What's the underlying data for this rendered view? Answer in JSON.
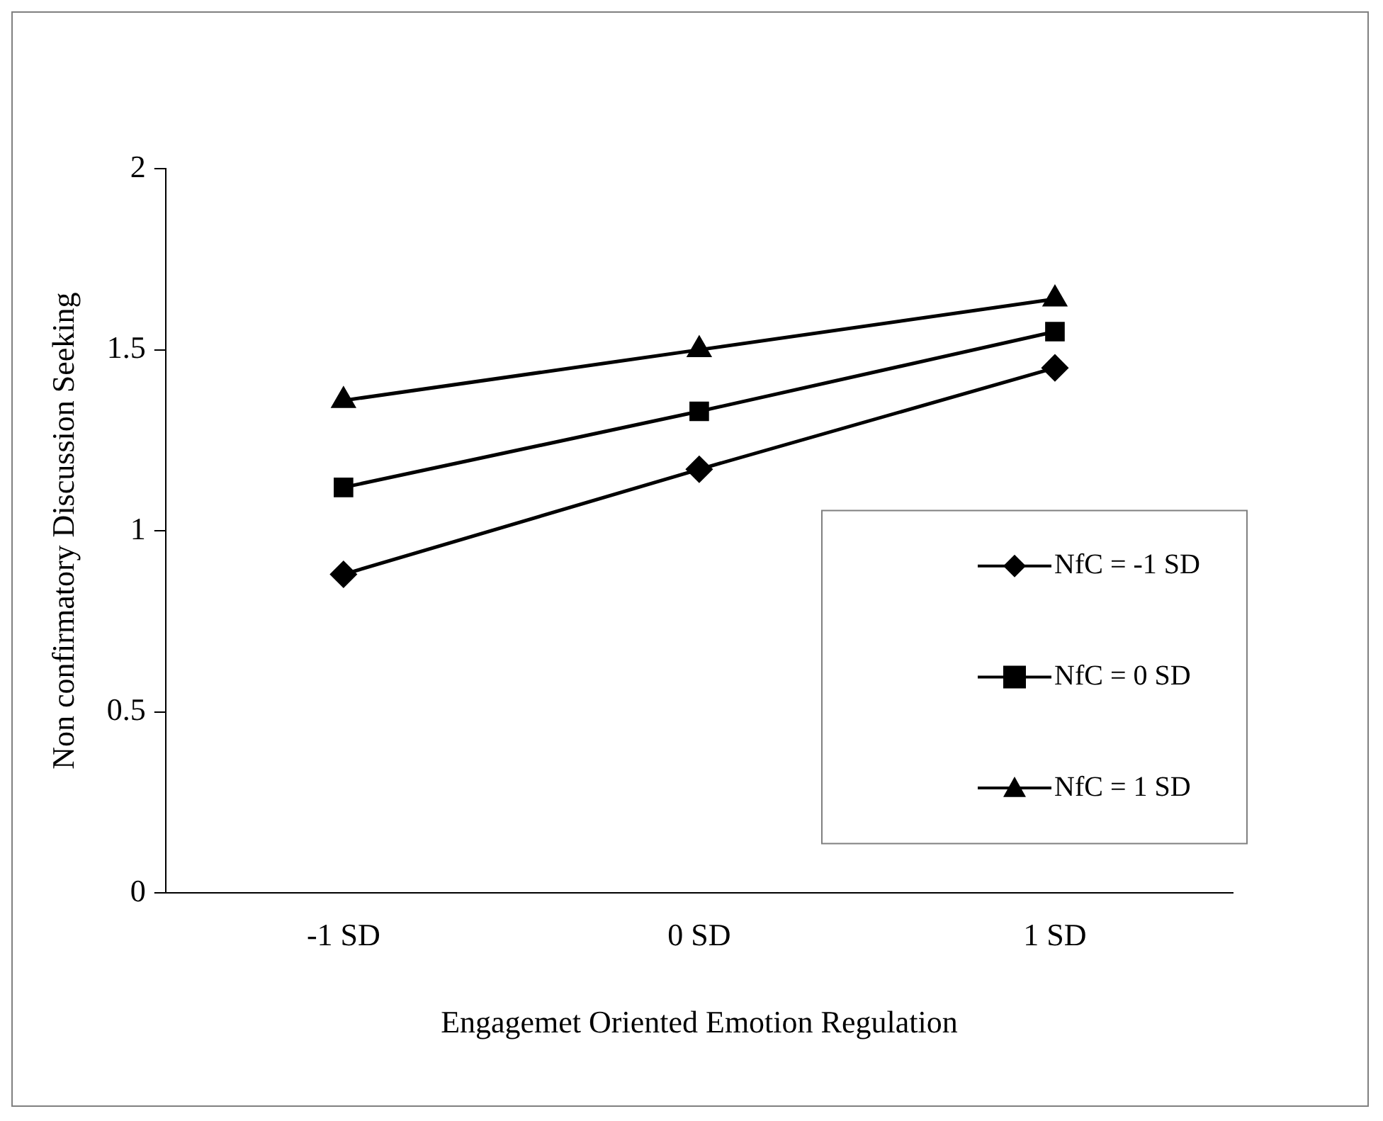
{
  "chart_data": {
    "type": "line",
    "xlabel": "Engagemet Oriented Emotion Regulation",
    "ylabel": "Non confirmatory Discussion Seeking",
    "categories": [
      "-1 SD",
      "0 SD",
      "1 SD"
    ],
    "series": [
      {
        "name": "NfC = -1 SD",
        "color": "#000000",
        "marker": "diamond",
        "values": [
          0.88,
          1.17,
          1.45
        ]
      },
      {
        "name": "NfC = 0 SD",
        "color": "#000000",
        "marker": "square",
        "values": [
          1.12,
          1.33,
          1.55
        ]
      },
      {
        "name": "NfC = 1 SD",
        "color": "#000000",
        "marker": "triangle",
        "values": [
          1.36,
          1.5,
          1.64
        ]
      }
    ],
    "ylim": [
      0,
      2
    ],
    "yticks": [
      0,
      0.5,
      1,
      1.5,
      2
    ],
    "grid": false,
    "legend": "bottom right",
    "line_style": "solid"
  }
}
